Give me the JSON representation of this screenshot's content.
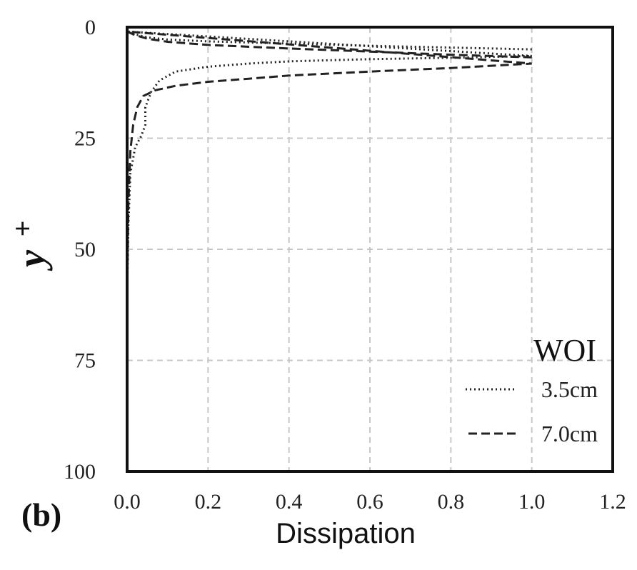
{
  "chart_data": {
    "type": "line",
    "panel_label": "(b)",
    "xlabel": "Dissipation",
    "ylabel": "y",
    "ylabel_superscript": "+",
    "xlim": [
      0.0,
      1.2
    ],
    "ylim": [
      0,
      100
    ],
    "y_inverted": true,
    "grid": true,
    "x_ticks": [
      0.0,
      0.2,
      0.4,
      0.6,
      0.8,
      1.0,
      1.2
    ],
    "x_tick_labels": [
      "0.0",
      "0.2",
      "0.4",
      "0.6",
      "0.8",
      "1.0",
      "1.2"
    ],
    "y_ticks": [
      0,
      25,
      50,
      75,
      100
    ],
    "y_tick_labels": [
      "0",
      "25",
      "50",
      "75",
      "100"
    ],
    "legend": {
      "title": "WOI",
      "position": "bottom-right"
    },
    "series": [
      {
        "name": "3.5cm",
        "style": "dotted",
        "points": [
          [
            1.0,
            5.0
          ],
          [
            0.8,
            4.6
          ],
          [
            0.6,
            4.2
          ],
          [
            0.4,
            3.7
          ],
          [
            0.2,
            3.2
          ],
          [
            0.1,
            2.8
          ],
          [
            0.05,
            2.3
          ],
          [
            0.02,
            1.6
          ],
          [
            0.0,
            1.0
          ]
        ],
        "points_lower": [
          [
            1.0,
            6.5
          ],
          [
            0.8,
            6.9
          ],
          [
            0.6,
            7.2
          ],
          [
            0.4,
            7.7
          ],
          [
            0.3,
            8.2
          ],
          [
            0.2,
            8.9
          ],
          [
            0.12,
            10.0
          ],
          [
            0.08,
            12.0
          ],
          [
            0.06,
            14.5
          ],
          [
            0.045,
            18.0
          ],
          [
            0.045,
            22.0
          ],
          [
            0.035,
            24.5
          ],
          [
            0.02,
            27.0
          ],
          [
            0.008,
            33.0
          ],
          [
            0.003,
            45.0
          ],
          [
            0.0,
            60.0
          ],
          [
            0.0,
            100.0
          ]
        ]
      },
      {
        "name": "7.0cm",
        "style": "dashed",
        "points": [
          [
            1.0,
            6.8
          ],
          [
            0.8,
            6.2
          ],
          [
            0.6,
            5.5
          ],
          [
            0.4,
            4.8
          ],
          [
            0.2,
            4.0
          ],
          [
            0.1,
            3.3
          ],
          [
            0.05,
            2.6
          ],
          [
            0.02,
            1.8
          ],
          [
            0.0,
            1.0
          ]
        ],
        "points_lower": [
          [
            1.0,
            8.2
          ],
          [
            0.8,
            9.2
          ],
          [
            0.6,
            10.0
          ],
          [
            0.4,
            10.9
          ],
          [
            0.3,
            11.6
          ],
          [
            0.2,
            12.3
          ],
          [
            0.12,
            13.2
          ],
          [
            0.07,
            14.2
          ],
          [
            0.04,
            15.5
          ],
          [
            0.025,
            18.0
          ],
          [
            0.015,
            22.0
          ],
          [
            0.008,
            28.0
          ],
          [
            0.003,
            40.0
          ],
          [
            0.0,
            60.0
          ],
          [
            0.0,
            100.0
          ]
        ]
      }
    ]
  }
}
